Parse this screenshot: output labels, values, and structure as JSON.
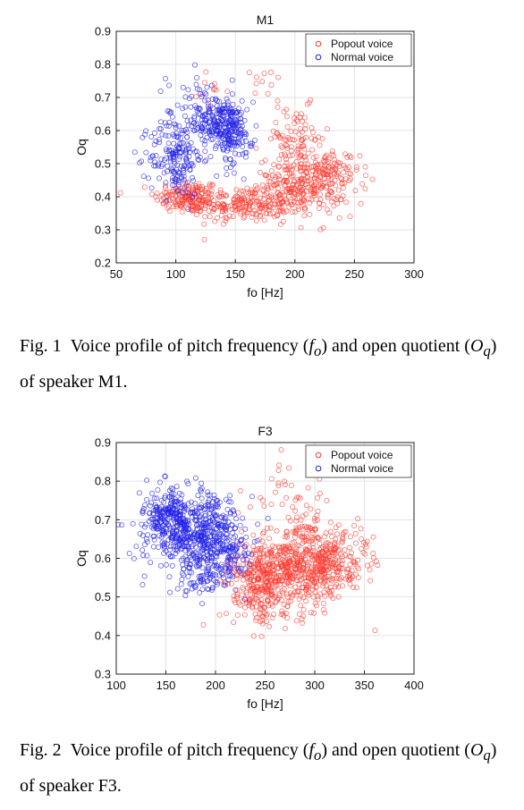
{
  "figures": [
    {
      "caption_prefix": "Fig. 1",
      "caption_before": "Voice profile of pitch frequency (",
      "caption_sym1": "f",
      "caption_sub1": "o",
      "caption_mid": ") and open quotient (",
      "caption_sym2": "O",
      "caption_sub2": "q",
      "caption_after": ") of speaker M1."
    },
    {
      "caption_prefix": "Fig. 2",
      "caption_before": "Voice profile of pitch frequency (",
      "caption_sym1": "f",
      "caption_sub1": "o",
      "caption_mid": ") and open quotient (",
      "caption_sym2": "O",
      "caption_sub2": "q",
      "caption_after": ") of speaker F3."
    }
  ],
  "chart_data": [
    {
      "type": "scatter",
      "title": "M1",
      "xlabel": "fo [Hz]",
      "ylabel": "Oq",
      "xlim": [
        50,
        300
      ],
      "ylim": [
        0.2,
        0.9
      ],
      "xticks": [
        50,
        100,
        150,
        200,
        250,
        300
      ],
      "yticks": [
        0.2,
        0.3,
        0.4,
        0.5,
        0.6,
        0.7,
        0.8,
        0.9
      ],
      "grid": true,
      "legend_position": "top-right",
      "series": [
        {
          "name": "Popout voice",
          "color": "#ff3b30",
          "marker": "open-circle",
          "clusters": [
            {
              "cx": 110,
              "cy": 0.4,
              "sx": 14,
              "sy": 0.025,
              "n": 160
            },
            {
              "cx": 155,
              "cy": 0.375,
              "sx": 20,
              "sy": 0.025,
              "n": 200
            },
            {
              "cx": 205,
              "cy": 0.43,
              "sx": 18,
              "sy": 0.045,
              "n": 260
            },
            {
              "cx": 230,
              "cy": 0.46,
              "sx": 12,
              "sy": 0.04,
              "n": 90
            },
            {
              "cx": 200,
              "cy": 0.57,
              "sx": 14,
              "sy": 0.05,
              "n": 90
            },
            {
              "cx": 130,
              "cy": 0.72,
              "sx": 6,
              "sy": 0.04,
              "n": 12
            },
            {
              "cx": 172,
              "cy": 0.74,
              "sx": 8,
              "sy": 0.03,
              "n": 10
            }
          ]
        },
        {
          "name": "Normal voice",
          "color": "#1f1fe8",
          "marker": "open-circle",
          "clusters": [
            {
              "cx": 100,
              "cy": 0.52,
              "sx": 11,
              "sy": 0.06,
              "n": 170
            },
            {
              "cx": 140,
              "cy": 0.62,
              "sx": 11,
              "sy": 0.035,
              "n": 210
            },
            {
              "cx": 120,
              "cy": 0.66,
              "sx": 14,
              "sy": 0.06,
              "n": 80
            },
            {
              "cx": 150,
              "cy": 0.56,
              "sx": 9,
              "sy": 0.04,
              "n": 60
            }
          ]
        }
      ]
    },
    {
      "type": "scatter",
      "title": "F3",
      "xlabel": "fo [Hz]",
      "ylabel": "Oq",
      "xlim": [
        100,
        400
      ],
      "ylim": [
        0.3,
        0.9
      ],
      "xticks": [
        100,
        150,
        200,
        250,
        300,
        350,
        400
      ],
      "yticks": [
        0.3,
        0.4,
        0.5,
        0.6,
        0.7,
        0.8,
        0.9
      ],
      "grid": true,
      "legend_position": "top-right",
      "series": [
        {
          "name": "Popout voice",
          "color": "#ff3b30",
          "marker": "open-circle",
          "clusters": [
            {
              "cx": 285,
              "cy": 0.58,
              "sx": 28,
              "sy": 0.05,
              "n": 520
            },
            {
              "cx": 245,
              "cy": 0.54,
              "sx": 16,
              "sy": 0.04,
              "n": 200
            },
            {
              "cx": 320,
              "cy": 0.6,
              "sx": 18,
              "sy": 0.04,
              "n": 120
            },
            {
              "cx": 275,
              "cy": 0.76,
              "sx": 22,
              "sy": 0.05,
              "n": 40
            },
            {
              "cx": 255,
              "cy": 0.47,
              "sx": 20,
              "sy": 0.03,
              "n": 50
            }
          ]
        },
        {
          "name": "Normal voice",
          "color": "#1f1fe8",
          "marker": "open-circle",
          "clusters": [
            {
              "cx": 170,
              "cy": 0.68,
              "sx": 22,
              "sy": 0.05,
              "n": 420
            },
            {
              "cx": 205,
              "cy": 0.63,
              "sx": 15,
              "sy": 0.05,
              "n": 220
            },
            {
              "cx": 150,
              "cy": 0.72,
              "sx": 10,
              "sy": 0.04,
              "n": 120
            },
            {
              "cx": 185,
              "cy": 0.56,
              "sx": 15,
              "sy": 0.03,
              "n": 60
            }
          ]
        }
      ]
    }
  ]
}
